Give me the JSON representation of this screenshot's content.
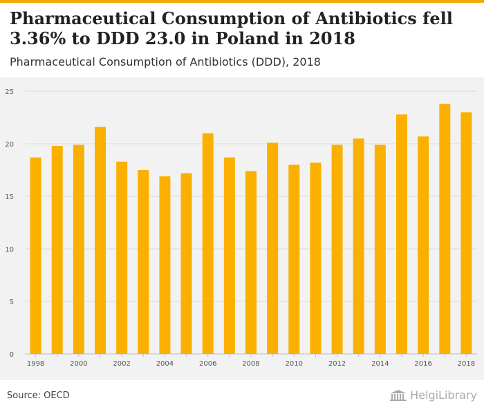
{
  "header": {
    "title": "Pharmaceutical Consumption of Antibiotics fell 3.36% to DDD 23.0 in Poland in 2018",
    "subtitle": "Pharmaceutical Consumption of Antibiotics (DDD), 2018"
  },
  "footer": {
    "source": "Source: OECD",
    "brand": "HelgiLibrary",
    "brand_icon": "library-building-icon"
  },
  "colors": {
    "accent": "#f5a800",
    "bar": "#fbb000",
    "panel": "#f2f2f2",
    "grid": "#d9d9d9"
  },
  "chart_data": {
    "type": "bar",
    "title": "",
    "xlabel": "",
    "ylabel": "",
    "ylim": [
      0,
      25
    ],
    "yticks": [
      0,
      5,
      10,
      15,
      20,
      25
    ],
    "grid": true,
    "categories": [
      "1998",
      "1999",
      "2000",
      "2001",
      "2002",
      "2003",
      "2004",
      "2005",
      "2006",
      "2007",
      "2008",
      "2009",
      "2010",
      "2011",
      "2012",
      "2013",
      "2014",
      "2015",
      "2016",
      "2017",
      "2018"
    ],
    "xtick_labels": [
      "1998",
      "",
      "2000",
      "",
      "2002",
      "",
      "2004",
      "",
      "2006",
      "",
      "2008",
      "",
      "2010",
      "",
      "2012",
      "",
      "2014",
      "",
      "2016",
      "",
      "2018"
    ],
    "values": [
      18.7,
      19.8,
      19.9,
      21.6,
      18.3,
      17.5,
      16.9,
      17.2,
      21.0,
      18.7,
      17.4,
      20.1,
      18.0,
      18.2,
      19.9,
      20.5,
      19.9,
      22.8,
      20.7,
      23.8,
      23.0
    ]
  }
}
